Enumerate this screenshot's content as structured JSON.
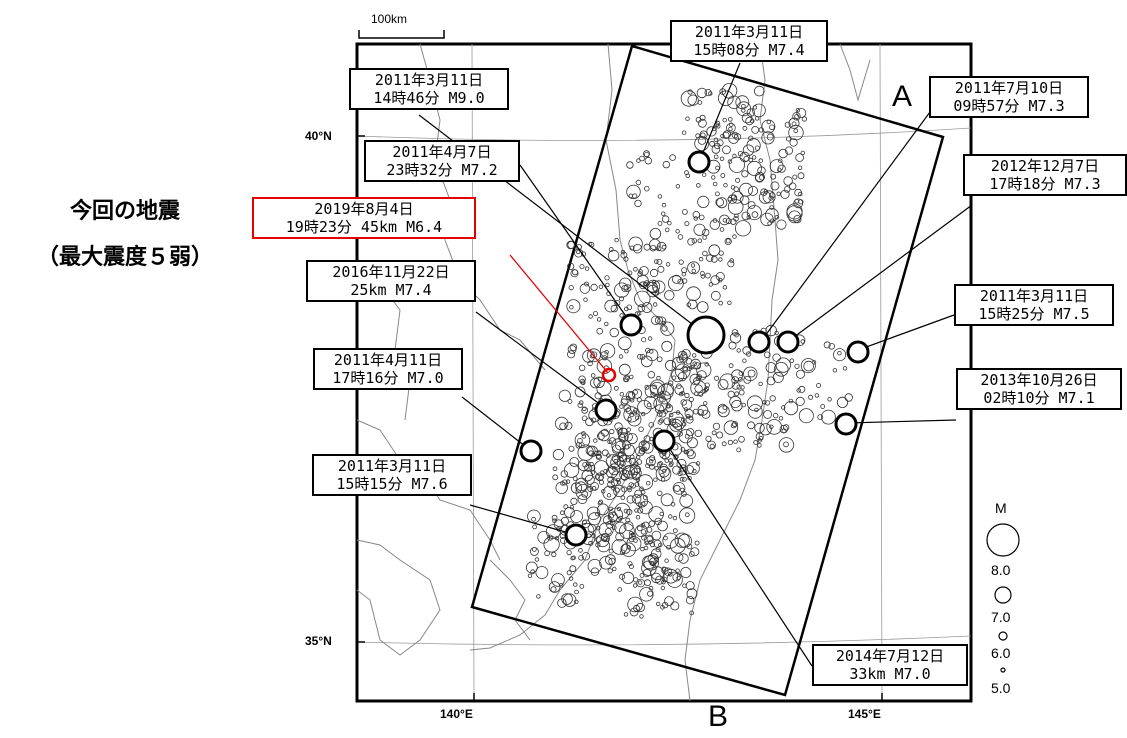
{
  "scale_bar": {
    "label": "100km"
  },
  "axes": {
    "lat_40": "40°N",
    "lat_35": "35°N",
    "lon_140": "140°E",
    "lon_145": "145°E"
  },
  "section": {
    "a": "A",
    "b": "B"
  },
  "current_event": {
    "title": "今回の地震",
    "subtitle": "（最大震度５弱）"
  },
  "callouts": [
    {
      "line1": "2011年3月11日",
      "line2": "15時08分 M7.4",
      "magnitude": 7.4,
      "highlight": false
    },
    {
      "line1": "2011年3月11日",
      "line2": "14時46分 M9.0",
      "magnitude": 9.0,
      "highlight": false
    },
    {
      "line1": "2011年7月10日",
      "line2": "09時57分 M7.3",
      "magnitude": 7.3,
      "highlight": false
    },
    {
      "line1": "2011年4月7日",
      "line2": "23時32分 M7.2",
      "magnitude": 7.2,
      "highlight": false
    },
    {
      "line1": "2012年12月7日",
      "line2": "17時18分 M7.3",
      "magnitude": 7.3,
      "highlight": false
    },
    {
      "line1": "2019年8月4日",
      "line2": "19時23分 45km M6.4",
      "magnitude": 6.4,
      "highlight": true
    },
    {
      "line1": "2016年11月22日",
      "line2": "25km M7.4",
      "magnitude": 7.4,
      "highlight": false
    },
    {
      "line1": "2011年3月11日",
      "line2": "15時25分 M7.5",
      "magnitude": 7.5,
      "highlight": false
    },
    {
      "line1": "2011年4月11日",
      "line2": "17時16分 M7.0",
      "magnitude": 7.0,
      "highlight": false
    },
    {
      "line1": "2013年10月26日",
      "line2": "02時10分 M7.1",
      "magnitude": 7.1,
      "highlight": false
    },
    {
      "line1": "2011年3月11日",
      "line2": "15時15分 M7.6",
      "magnitude": 7.6,
      "highlight": false
    },
    {
      "line1": "2014年7月12日",
      "line2": "33km M7.0",
      "magnitude": 7.0,
      "highlight": false
    }
  ],
  "legend": {
    "title": "M",
    "levels": [
      "8.0",
      "7.0",
      "6.0",
      "5.0"
    ]
  },
  "colors": {
    "highlight": "#e60000",
    "ink": "#000000",
    "background": "#ffffff",
    "coast": "#888888"
  }
}
